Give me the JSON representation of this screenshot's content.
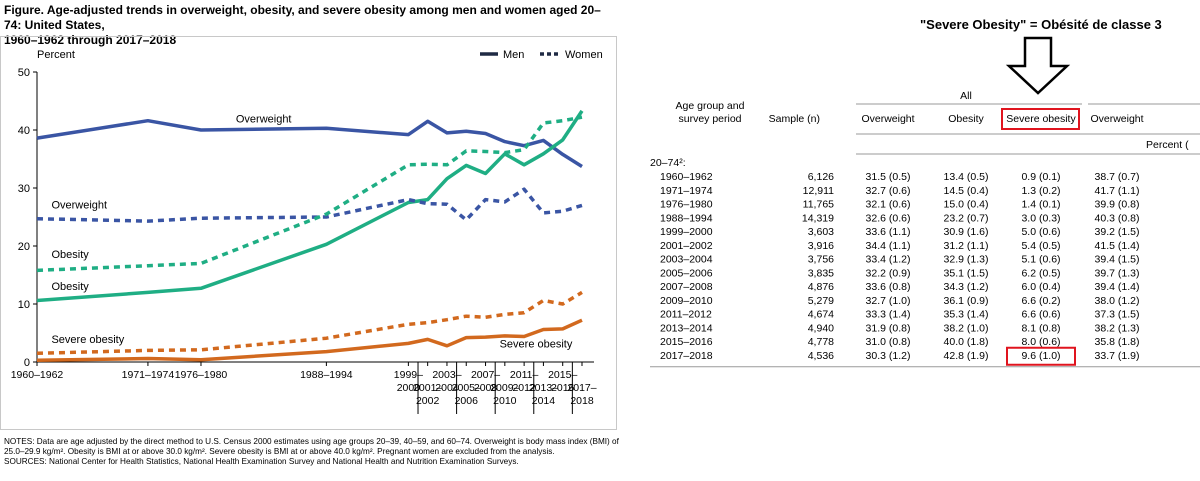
{
  "figure": {
    "title_line1": "Figure. Age-adjusted trends in overweight, obesity, and severe obesity among men and women aged 20–74: United States,",
    "title_line2": "1960–1962 through 2017–2018",
    "notes_line1": "NOTES: Data are age adjusted by the direct method to U.S. Census 2000 estimates using age groups 20–39, 40–59, and 60–74. Overweight is body mass index (BMI) of",
    "notes_line2": "25.0–29.9 kg/m². Obesity is BMI at or above 30.0 kg/m². Severe obesity is BMI at or above 40.0 kg/m². Pregnant women are excluded from the analysis.",
    "sources": "SOURCES: National Center for Health Statistics, National Health Examination Survey and National Health and Nutrition Examination Surveys."
  },
  "chart_data": {
    "type": "line",
    "ylabel": "Percent",
    "ylim": [
      0,
      50
    ],
    "yticks": [
      0,
      10,
      20,
      30,
      40,
      50
    ],
    "x": [
      1961,
      1972.5,
      1978,
      1991,
      1999.5,
      2001.5,
      2003.5,
      2005.5,
      2007.5,
      2009.5,
      2011.5,
      2013.5,
      2015.5,
      2017.5
    ],
    "xlim": [
      1961,
      2017.5
    ],
    "xticks": [
      {
        "x": 1961,
        "lines": [
          "1960–1962"
        ]
      },
      {
        "x": 1972.5,
        "lines": [
          "1971–1974"
        ]
      },
      {
        "x": 1978,
        "lines": [
          "1976–1980"
        ]
      },
      {
        "x": 1991,
        "lines": [
          "1988–1994"
        ]
      },
      {
        "x": 1999.5,
        "lines": [
          "1999–",
          "2000"
        ]
      },
      {
        "x": 2001.5,
        "lines": [
          "",
          "",
          "2001–",
          "2002"
        ]
      },
      {
        "x": 2003.5,
        "lines": [
          "2003–",
          "2004"
        ]
      },
      {
        "x": 2005.5,
        "lines": [
          "",
          "",
          "2005–",
          "2006"
        ]
      },
      {
        "x": 2007.5,
        "lines": [
          "2007–",
          "2008"
        ]
      },
      {
        "x": 2009.5,
        "lines": [
          "",
          "",
          "2009–",
          "2010"
        ]
      },
      {
        "x": 2011.5,
        "lines": [
          "2011–",
          "2012"
        ]
      },
      {
        "x": 2013.5,
        "lines": [
          "",
          "",
          "2013–",
          "2014"
        ]
      },
      {
        "x": 2015.5,
        "lines": [
          "2015–",
          "2016"
        ]
      },
      {
        "x": 2017.5,
        "lines": [
          "",
          "",
          "2017–",
          "2018"
        ]
      }
    ],
    "legend": {
      "position": "top-right",
      "men": "Men",
      "women": "Women"
    },
    "colors": {
      "overweight": "#3a55a4",
      "obesity": "#1fae84",
      "severe": "#d2691e"
    },
    "series": [
      {
        "group": "men",
        "key": "overweight",
        "dashed": false,
        "values": [
          38.6,
          41.6,
          40.0,
          40.3,
          39.2,
          41.5,
          39.5,
          39.8,
          39.4,
          38.0,
          37.3,
          38.2,
          35.8,
          33.7
        ]
      },
      {
        "group": "men",
        "key": "obesity",
        "dashed": false,
        "values": [
          10.6,
          12.0,
          12.7,
          20.3,
          27.5,
          28.0,
          31.6,
          33.9,
          32.5,
          35.9,
          34.0,
          35.9,
          38.3,
          43.3
        ]
      },
      {
        "group": "men",
        "key": "severe",
        "dashed": false,
        "values": [
          0.3,
          0.6,
          0.4,
          1.8,
          3.2,
          3.9,
          2.8,
          4.2,
          4.3,
          4.5,
          4.4,
          5.6,
          5.7,
          7.2
        ]
      },
      {
        "group": "women",
        "key": "overweight",
        "dashed": true,
        "values": [
          24.7,
          24.3,
          24.8,
          25.0,
          28.0,
          27.3,
          27.2,
          24.5,
          28.0,
          27.6,
          29.8,
          25.7,
          26.0,
          27.0
        ]
      },
      {
        "group": "women",
        "key": "obesity",
        "dashed": true,
        "values": [
          15.8,
          16.6,
          17.0,
          25.5,
          34.0,
          34.1,
          34.0,
          36.4,
          36.3,
          36.1,
          36.6,
          41.2,
          41.6,
          42.2
        ]
      },
      {
        "group": "women",
        "key": "severe",
        "dashed": true,
        "values": [
          1.5,
          2.0,
          2.1,
          4.1,
          6.5,
          6.8,
          7.3,
          7.9,
          7.7,
          8.2,
          8.5,
          10.6,
          10.0,
          12.0
        ]
      }
    ],
    "annotations": [
      {
        "text": "Overweight",
        "x": 1984.5,
        "y": 41.3,
        "anchor": "middle"
      },
      {
        "text": "Overweight",
        "x": 1962.5,
        "y": 26.5,
        "anchor": "start"
      },
      {
        "text": "Obesity",
        "x": 1962.5,
        "y": 17.9,
        "anchor": "start"
      },
      {
        "text": "Obesity",
        "x": 1962.5,
        "y": 12.4,
        "anchor": "start"
      },
      {
        "text": "Severe obesity",
        "x": 1962.5,
        "y": 3.3,
        "anchor": "start"
      },
      {
        "text": "Severe obesity",
        "x": 2016.5,
        "y": 2.5,
        "anchor": "end"
      }
    ]
  },
  "annotation": {
    "text": "\"Severe Obesity\" = Obésité de classe 3"
  },
  "table": {
    "group_header": "All",
    "col_age_line1": "Age group and",
    "col_age_line2": "survey period",
    "col_sample": "Sample (n)",
    "col_overweight": "Overweight",
    "col_obesity": "Obesity",
    "col_severe": "Severe obesity",
    "col_overweight_men": "Overweight",
    "percent_label": "Percent (",
    "age_group": "20–74²:",
    "highlight_color": "#e0141e",
    "rows": [
      {
        "period": "1960–1962",
        "n": "6,126",
        "ow": "31.5 (0.5)",
        "ob": "13.4 (0.5)",
        "sev": "0.9 (0.1)",
        "ow2": "38.7 (0.7)"
      },
      {
        "period": "1971–1974",
        "n": "12,911",
        "ow": "32.7 (0.6)",
        "ob": "14.5 (0.4)",
        "sev": "1.3 (0.2)",
        "ow2": "41.7 (1.1)"
      },
      {
        "period": "1976–1980",
        "n": "11,765",
        "ow": "32.1 (0.6)",
        "ob": "15.0 (0.4)",
        "sev": "1.4 (0.1)",
        "ow2": "39.9 (0.8)"
      },
      {
        "period": "1988–1994",
        "n": "14,319",
        "ow": "32.6 (0.6)",
        "ob": "23.2 (0.7)",
        "sev": "3.0 (0.3)",
        "ow2": "40.3 (0.8)"
      },
      {
        "period": "1999–2000",
        "n": "3,603",
        "ow": "33.6 (1.1)",
        "ob": "30.9 (1.6)",
        "sev": "5.0 (0.6)",
        "ow2": "39.2 (1.5)"
      },
      {
        "period": "2001–2002",
        "n": "3,916",
        "ow": "34.4 (1.1)",
        "ob": "31.2 (1.1)",
        "sev": "5.4 (0.5)",
        "ow2": "41.5 (1.4)"
      },
      {
        "period": "2003–2004",
        "n": "3,756",
        "ow": "33.4 (1.2)",
        "ob": "32.9 (1.3)",
        "sev": "5.1 (0.6)",
        "ow2": "39.4 (1.5)"
      },
      {
        "period": "2005–2006",
        "n": "3,835",
        "ow": "32.2 (0.9)",
        "ob": "35.1 (1.5)",
        "sev": "6.2 (0.5)",
        "ow2": "39.7 (1.3)"
      },
      {
        "period": "2007–2008",
        "n": "4,876",
        "ow": "33.6 (0.8)",
        "ob": "34.3 (1.2)",
        "sev": "6.0 (0.4)",
        "ow2": "39.4 (1.4)"
      },
      {
        "period": "2009–2010",
        "n": "5,279",
        "ow": "32.7 (1.0)",
        "ob": "36.1 (0.9)",
        "sev": "6.6 (0.2)",
        "ow2": "38.0 (1.2)"
      },
      {
        "period": "2011–2012",
        "n": "4,674",
        "ow": "33.3 (1.4)",
        "ob": "35.3 (1.4)",
        "sev": "6.6 (0.6)",
        "ow2": "37.3 (1.5)"
      },
      {
        "period": "2013–2014",
        "n": "4,940",
        "ow": "31.9 (0.8)",
        "ob": "38.2 (1.0)",
        "sev": "8.1 (0.8)",
        "ow2": "38.2 (1.3)"
      },
      {
        "period": "2015–2016",
        "n": "4,778",
        "ow": "31.0 (0.8)",
        "ob": "40.0 (1.8)",
        "sev": "8.0 (0.6)",
        "ow2": "35.8 (1.8)"
      },
      {
        "period": "2017–2018",
        "n": "4,536",
        "ow": "30.3 (1.2)",
        "ob": "42.8 (1.9)",
        "sev": "9.6 (1.0)",
        "ow2": "33.7 (1.9)",
        "highlight": true
      }
    ]
  }
}
